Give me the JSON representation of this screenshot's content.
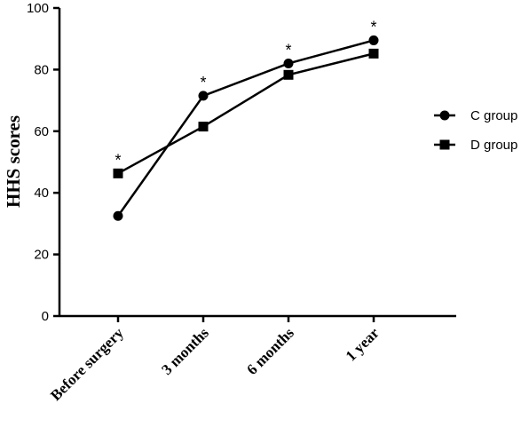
{
  "chart_data": {
    "type": "line",
    "title": "",
    "xlabel": "",
    "ylabel": "HHS scores",
    "ylim": [
      0,
      100
    ],
    "yticks": [
      0,
      20,
      40,
      60,
      80,
      100
    ],
    "categories": [
      "Before surgery",
      "3 months",
      "6 months",
      "1 year"
    ],
    "series": [
      {
        "name": "C group",
        "marker": "circle",
        "values": [
          32.5,
          71.5,
          82,
          89.5
        ]
      },
      {
        "name": "D group",
        "marker": "square",
        "values": [
          46.3,
          61.5,
          78.3,
          85.2
        ]
      }
    ],
    "annotations": [
      "*",
      "*",
      "*",
      "*"
    ],
    "legend_position": "right",
    "grid": false
  }
}
